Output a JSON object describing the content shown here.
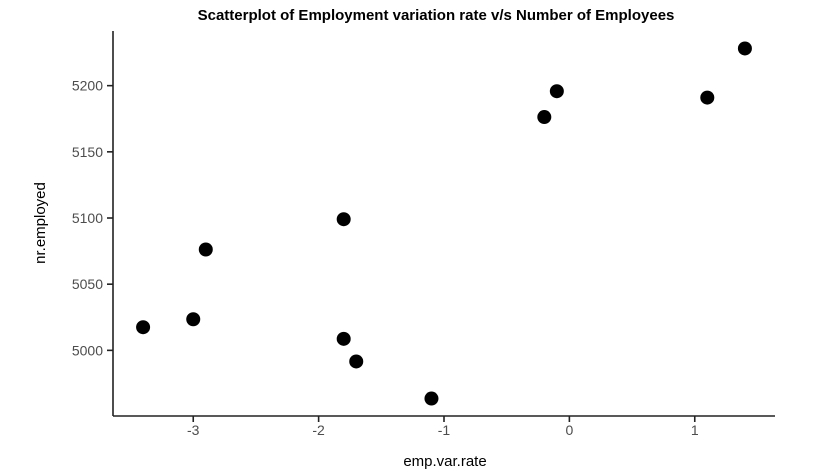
{
  "chart_data": {
    "type": "scatter",
    "title": "Scatterplot of Employment variation rate v/s Number of Employees",
    "xlabel": "emp.var.rate",
    "ylabel": "nr.employed",
    "x_ticks": [
      -3,
      -2,
      -1,
      0,
      1
    ],
    "y_ticks": [
      5000,
      5050,
      5100,
      5150,
      5200
    ],
    "xlim": [
      -3.64,
      1.64
    ],
    "ylim": [
      4950.4,
      5241.3
    ],
    "grid": false,
    "legend": "none",
    "background_color": "#ffffff",
    "axis_line_color": "#222222",
    "tick_label_color": "#4d4d4d",
    "point_color": "#000000",
    "point_radius": 7,
    "points": [
      {
        "x": -3.4,
        "y": 5017.5
      },
      {
        "x": -3.0,
        "y": 5023.5
      },
      {
        "x": -2.9,
        "y": 5076.2
      },
      {
        "x": -1.8,
        "y": 5099.1
      },
      {
        "x": -1.8,
        "y": 5008.7
      },
      {
        "x": -1.7,
        "y": 4991.6
      },
      {
        "x": -1.1,
        "y": 4963.6
      },
      {
        "x": -0.2,
        "y": 5176.3
      },
      {
        "x": -0.1,
        "y": 5195.8
      },
      {
        "x": 1.1,
        "y": 5191.0
      },
      {
        "x": 1.4,
        "y": 5228.1
      }
    ]
  }
}
